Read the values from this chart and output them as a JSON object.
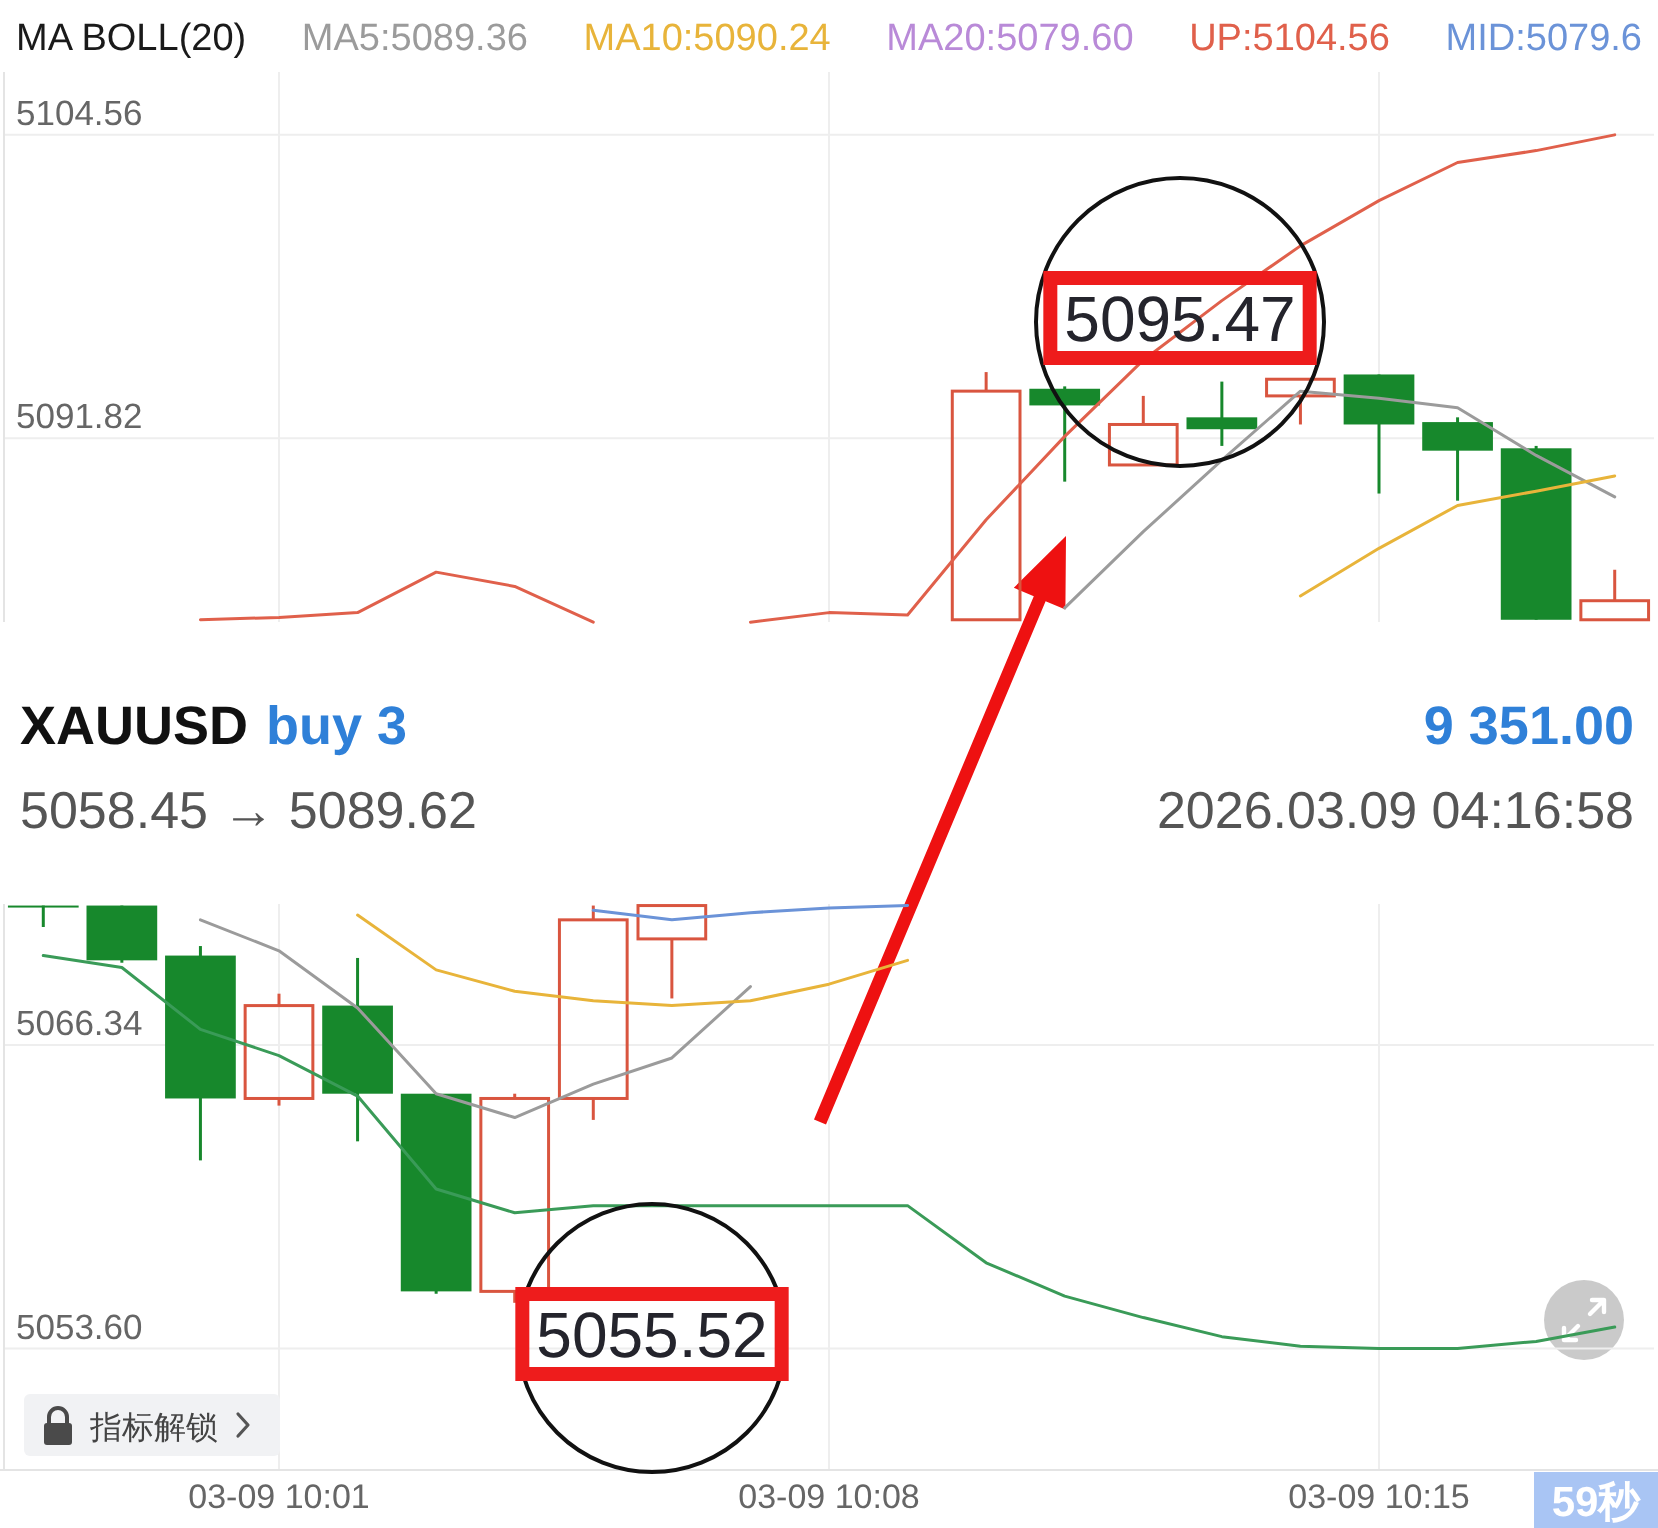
{
  "chart_data": {
    "type": "candlestick",
    "legend_title": "MA BOLL(20)",
    "legend": "top",
    "grid": true,
    "categories": [
      null,
      null,
      null,
      "03-09 10:01",
      null,
      null,
      null,
      null,
      null,
      null,
      "03-09 10:08",
      null,
      null,
      null,
      null,
      null,
      null,
      "03-09 10:15",
      null,
      null,
      null
    ],
    "ohlc": [
      [
        5072.2,
        5072.2,
        5071.3,
        5072.2
      ],
      [
        5072.2,
        5072.2,
        5069.8,
        5069.9
      ],
      [
        5070.1,
        5070.5,
        5061.5,
        5064.1
      ],
      [
        5064.1,
        5068.5,
        5063.8,
        5068.0
      ],
      [
        5068.0,
        5070.0,
        5062.3,
        5064.3
      ],
      [
        5064.3,
        5064.3,
        5055.9,
        5056.0
      ],
      [
        5056.0,
        5064.3,
        5055.52,
        5064.1
      ],
      [
        5064.1,
        5072.2,
        5063.2,
        5071.6
      ],
      [
        5070.8,
        5072.2,
        5068.3,
        5072.2
      ],
      null,
      null,
      null,
      [
        5084.2,
        5094.6,
        5084.2,
        5093.8
      ],
      [
        5093.9,
        5094.0,
        5090.0,
        5093.2
      ],
      [
        5090.7,
        5093.6,
        5090.7,
        5092.4
      ],
      [
        5092.7,
        5094.2,
        5091.5,
        5092.2
      ],
      [
        5093.6,
        5094.3,
        5092.4,
        5094.3
      ],
      [
        5094.5,
        5094.5,
        5089.5,
        5092.4
      ],
      [
        5092.5,
        5092.7,
        5089.2,
        5091.3
      ],
      [
        5091.4,
        5091.5,
        5084.2,
        5084.2
      ],
      [
        5084.2,
        5086.3,
        5084.2,
        5085.0
      ]
    ],
    "colors": [
      "#17882c",
      "#17882c",
      "#17882c",
      "#d9553f",
      "#17882c",
      "#17882c",
      "#d9553f",
      "#d9553f",
      "#d9553f",
      null,
      null,
      null,
      "#d9553f",
      "#17882c",
      "#d9553f",
      "#17882c",
      "#d9553f",
      "#17882c",
      "#17882c",
      "#17882c",
      "#d9553f"
    ],
    "series": [
      {
        "name": "MA5:5089.36",
        "type": "line",
        "color": "#9b9b9b",
        "values": [
          null,
          null,
          5071.6,
          5070.3,
          5067.9,
          5064.3,
          5063.3,
          5064.7,
          5065.8,
          5068.8,
          null,
          null,
          null,
          5084.7,
          5087.9,
          5090.9,
          5093.8,
          5093.5,
          5093.1,
          5091.1,
          5089.36
        ]
      },
      {
        "name": "MA10:5090.24",
        "type": "line",
        "color": "#e8b43a",
        "values": [
          null,
          null,
          null,
          null,
          5071.8,
          5069.5,
          5068.6,
          5068.2,
          5068.0,
          5068.2,
          5068.9,
          5069.9,
          null,
          null,
          null,
          null,
          5085.2,
          5087.2,
          5089.0,
          5089.6,
          5090.24
        ]
      },
      {
        "name": "MA20:5079.60",
        "type": "line",
        "color": "#b98ad8",
        "values": [
          null,
          null,
          null,
          null,
          null,
          null,
          null,
          null,
          null,
          null,
          null,
          null,
          null,
          null,
          null,
          null,
          null,
          null,
          null,
          null,
          null
        ]
      },
      {
        "name": "UP:5104.56",
        "type": "line",
        "color": "#e0604b",
        "values": [
          null,
          null,
          5084.2,
          5084.3,
          5084.5,
          5086.2,
          5085.6,
          5084.1,
          null,
          5084.1,
          5084.5,
          5084.4,
          5088.4,
          5091.9,
          5095.1,
          5097.6,
          5099.9,
          5101.8,
          5103.4,
          5103.9,
          5104.56
        ]
      },
      {
        "name": "MID:5079.6",
        "type": "line",
        "color": "#6b93d8",
        "values": [
          null,
          null,
          null,
          null,
          null,
          null,
          null,
          5072.0,
          5071.6,
          5071.9,
          5072.1,
          5072.2,
          null,
          null,
          null,
          null,
          null,
          null,
          null,
          null,
          null
        ]
      },
      {
        "type": "line",
        "color": "#3a9b58",
        "values": [
          5070.1,
          5069.6,
          5067.0,
          5065.9,
          5064.2,
          5060.3,
          5059.3,
          5059.6,
          5059.6,
          5059.6,
          5059.6,
          5059.6,
          5057.2,
          5055.8,
          5054.9,
          5054.1,
          5053.7,
          5053.6,
          5053.6,
          5053.9,
          5054.5
        ]
      }
    ],
    "ylim": [
      5048.5,
      5107.2
    ],
    "yticks": [
      5104.56,
      5091.82,
      5066.34,
      {
        "value": 5053.6,
        "label": "5053.60"
      }
    ],
    "annotations": [
      "XAUUSD",
      "buy 3",
      "9 351.00",
      "5058.45 → 5089.62",
      "2026.03.09 04:16:58",
      "5095.47",
      "5055.52",
      "指标解锁",
      "59秒"
    ]
  }
}
